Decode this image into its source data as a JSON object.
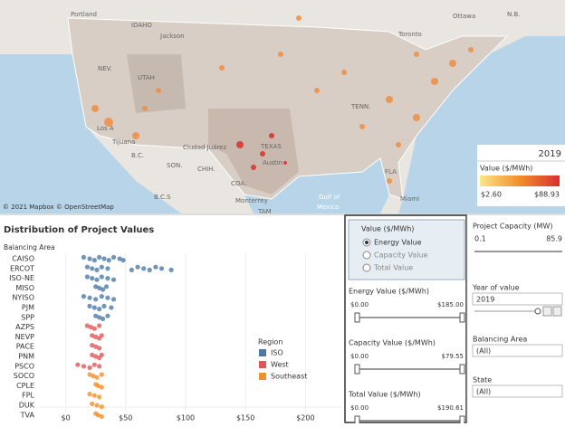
{
  "map": {
    "labels": [
      "Portland",
      "IDAHO",
      "Jackson",
      "NEV.",
      "UTAH",
      "Los A",
      "Tijuana",
      "B.C.",
      "SON.",
      "CHIH.",
      "Ciudad Juárez",
      "TEXAS",
      "Austin",
      "COA.",
      "Monterrey",
      "TAM",
      "Gulf of",
      "Mexico",
      "Ottawa",
      "Toronto",
      "TENN.",
      "FLA",
      "Miami",
      "N.B.",
      "B.C.S"
    ],
    "attribution": "© 2021 Mapbox © OpenStreetMap",
    "legend": {
      "year": "2019",
      "title": "Value ($/MWh)",
      "min": "$2.60",
      "max": "$88.93"
    }
  },
  "controls": {
    "value_selector": {
      "title": "Value ($/MWh)",
      "options": [
        "Energy Value",
        "Capacity Value",
        "Total Value"
      ],
      "selected": 0
    },
    "sliders": [
      {
        "title": "Energy Value ($/MWh)",
        "min": "$0.00",
        "max": "$185.00"
      },
      {
        "title": "Capacity Value ($/MWh)",
        "min": "$0.00",
        "max": "$79.55"
      },
      {
        "title": "Total Value ($/MWh)",
        "min": "$0.00",
        "max": "$190.61"
      }
    ],
    "project_capacity": {
      "title": "Project Capacity (MW)",
      "min": "0.1",
      "max": "85.9"
    },
    "year": {
      "title": "Year of value",
      "value": "2019"
    },
    "balancing_area": {
      "title": "Balancing Area",
      "value": "(All)"
    },
    "state": {
      "title": "State",
      "value": "(All)"
    }
  },
  "chart_data": {
    "type": "strip",
    "title": "Distribution of Project Values",
    "y_label": "Balancing Area",
    "categories": [
      "CAISO",
      "ERCOT",
      "ISO-NE",
      "MISO",
      "NYISO",
      "PJM",
      "SPP",
      "AZPS",
      "NEVP",
      "PACE",
      "PNM",
      "PSCO",
      "SOCO",
      "CPLE",
      "FPL",
      "DUK",
      "TVA"
    ],
    "legend_title": "Region",
    "series": [
      {
        "name": "ISO",
        "color": "#4e79a7",
        "values": [
          [
            15,
            20,
            24,
            28,
            32,
            36,
            40,
            45,
            48
          ],
          [
            18,
            22,
            26,
            30,
            35,
            55,
            60,
            65,
            70,
            75,
            80,
            88
          ],
          [
            18,
            22,
            26,
            30,
            35,
            40
          ],
          [
            25,
            28,
            31,
            34
          ],
          [
            15,
            20,
            25,
            30,
            35,
            40
          ],
          [
            20,
            24,
            28,
            32,
            38
          ],
          [
            25,
            28,
            31,
            35
          ],
          null,
          null,
          null,
          null,
          null,
          null,
          null,
          null,
          null,
          null
        ]
      },
      {
        "name": "West",
        "color": "#e15759",
        "values": [
          null,
          null,
          null,
          null,
          null,
          null,
          null,
          [
            18,
            21,
            24,
            28
          ],
          [
            22,
            25,
            28,
            30
          ],
          [
            22,
            25,
            28
          ],
          [
            22,
            25,
            28,
            30
          ],
          [
            10,
            15,
            20,
            24,
            28
          ],
          null,
          null,
          null,
          null,
          null
        ]
      },
      {
        "name": "Southeast",
        "color": "#f28e2b",
        "values": [
          null,
          null,
          null,
          null,
          null,
          null,
          null,
          null,
          null,
          null,
          null,
          null,
          [
            20,
            23,
            26,
            30
          ],
          [
            25,
            27,
            30
          ],
          [
            20,
            24,
            28
          ],
          [
            22,
            26,
            30
          ],
          [
            25,
            27,
            30
          ]
        ]
      }
    ],
    "xlim": [
      -8,
      202
    ],
    "xticks": [
      {
        "value": 0,
        "label": "$0"
      },
      {
        "value": 50,
        "label": "$50"
      },
      {
        "value": 100,
        "label": "$100"
      },
      {
        "value": 150,
        "label": "$150"
      },
      {
        "value": 200,
        "label": "$200"
      }
    ]
  }
}
